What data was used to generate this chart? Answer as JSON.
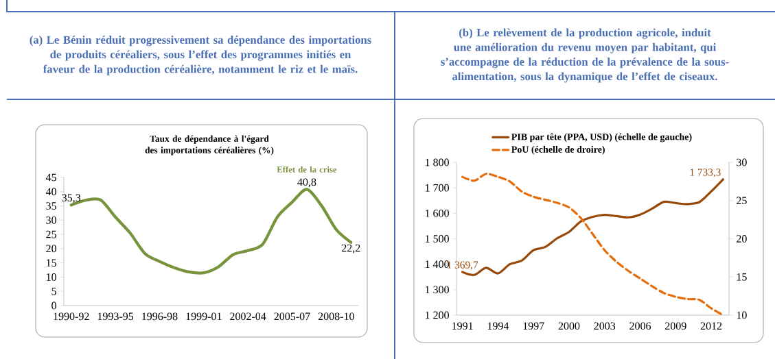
{
  "chart_data": [
    {
      "type": "line",
      "title": "(a) Le Bénin réduit progressivement sa dépendance des importations de produits céréaliers, sous l’effet des programmes initiés en faveur de la production céréalière, notamment le riz et le maïs.",
      "subtitle": "Taux de dépendance à l'égard des importations céréalières (%)",
      "categories": [
        "1990-92",
        null,
        null,
        "1993-95",
        null,
        null,
        "1996-98",
        null,
        null,
        "1999-01",
        null,
        null,
        "2002-04",
        null,
        null,
        "2005-07",
        null,
        null,
        "2008-10",
        null
      ],
      "values": [
        35.3,
        37.0,
        37.1,
        31.1,
        25.5,
        18.3,
        15.5,
        13.3,
        11.8,
        11.5,
        13.6,
        17.9,
        19.3,
        21.5,
        31.1,
        36.3,
        40.8,
        35.1,
        26.7,
        22.2
      ],
      "value_labels": [
        "35,3",
        null,
        null,
        null,
        null,
        null,
        null,
        null,
        null,
        null,
        null,
        null,
        null,
        null,
        null,
        null,
        "40,8",
        null,
        null,
        "22,2"
      ],
      "color": "#77933c",
      "annotations": [
        {
          "text": "Effet de la crise",
          "y": 40.8
        }
      ],
      "ylim": [
        0,
        45
      ],
      "yticks": [
        0,
        5,
        10,
        15,
        20,
        25,
        30,
        35,
        40,
        45
      ]
    },
    {
      "type": "line",
      "title": "(b) Le relèvement de la production agricole, induit une amélioration du revenu moyen par habitant, qui s’accompagne de la réduction de la prévalence de la sous-alimentation, sous la dynamique de l’effet de ciseaux.",
      "categories": [
        "1991",
        null,
        null,
        "1994",
        null,
        null,
        "1997",
        null,
        null,
        "2000",
        null,
        null,
        "2003",
        null,
        null,
        "2006",
        null,
        null,
        "2009",
        null,
        null,
        "2012",
        null
      ],
      "series": [
        {
          "name": "PIB par tête (PPA, USD) (échelle de gauche)",
          "color": "#984807",
          "values": [
            1369.7,
            1358,
            1386,
            1364,
            1400,
            1414,
            1455,
            1468,
            1502,
            1527,
            1568,
            1586,
            1594,
            1589,
            1584,
            1595,
            1618,
            1645,
            1640,
            1636,
            1644,
            1686,
            1733.3
          ],
          "value_labels": [
            "1 369,7",
            null,
            null,
            null,
            null,
            null,
            null,
            null,
            null,
            null,
            null,
            null,
            null,
            null,
            null,
            null,
            null,
            null,
            null,
            null,
            null,
            null,
            "1 733,3"
          ]
        },
        {
          "name": "PoU (échelle de droire)",
          "color": "#e46c0a",
          "axis": "y2",
          "line_style": "dashed",
          "values": [
            28.1,
            27.6,
            28.5,
            28.1,
            27.5,
            26.2,
            25.5,
            25.1,
            24.7,
            24.1,
            22.7,
            20.6,
            18.5,
            17.0,
            15.8,
            14.8,
            13.8,
            12.9,
            12.4,
            12.1,
            12.0,
            10.9,
            10.0
          ]
        }
      ],
      "ylim": [
        1200,
        1800
      ],
      "yticks": [
        {
          "value": 1200,
          "label": "1 200"
        },
        {
          "value": 1300,
          "label": "1 300"
        },
        {
          "value": 1400,
          "label": "1 400"
        },
        {
          "value": 1500,
          "label": "1 500"
        },
        {
          "value": 1600,
          "label": "1 600"
        },
        {
          "value": 1700,
          "label": "1 700"
        },
        {
          "value": 1800,
          "label": "1 800"
        }
      ],
      "y2lim": [
        10,
        30
      ],
      "y2ticks": [
        10,
        15,
        20,
        25,
        30
      ],
      "legend": "top"
    }
  ]
}
